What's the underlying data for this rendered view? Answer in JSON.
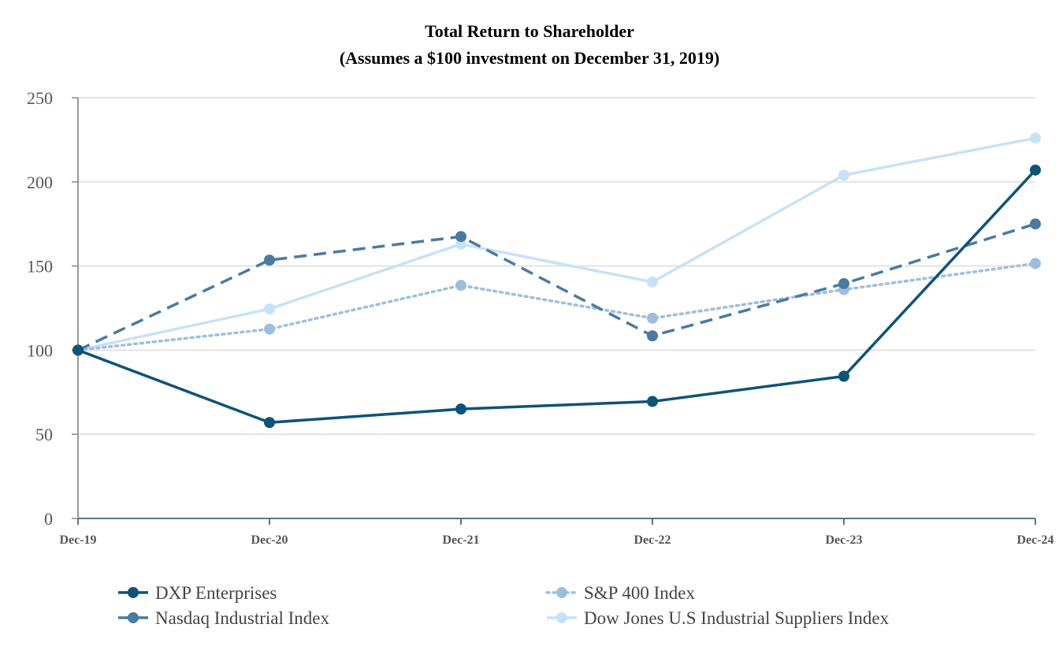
{
  "chart_data": {
    "type": "line",
    "title": "Total Return to Shareholder",
    "subtitle": "(Assumes a $100 investment on December 31, 2019)",
    "categories": [
      "Dec-19",
      "Dec-20",
      "Dec-21",
      "Dec-22",
      "Dec-23",
      "Dec-24"
    ],
    "ylim": [
      0,
      250
    ],
    "yticks": [
      0,
      50,
      100,
      150,
      200,
      250
    ],
    "grid": true,
    "legend_position": "bottom",
    "series": [
      {
        "name": "DXP Enterprises",
        "values": [
          100,
          57,
          65,
          69.5,
          84.5,
          207
        ],
        "color": "#0e5378",
        "style": "solid"
      },
      {
        "name": "Nasdaq Industrial Index",
        "values": [
          100,
          153.5,
          167.5,
          108.5,
          139.5,
          175
        ],
        "color": "#4a7aa2",
        "style": "dashed"
      },
      {
        "name": "S&P 400 Index",
        "values": [
          100,
          112.5,
          138.5,
          119,
          136,
          151.5
        ],
        "color": "#9dbfde",
        "style": "dotted"
      },
      {
        "name": "Dow Jones U.S Industrial Suppliers Index",
        "values": [
          100,
          124.5,
          163,
          140.5,
          204,
          226
        ],
        "color": "#c6e2f8",
        "style": "solid"
      }
    ]
  }
}
